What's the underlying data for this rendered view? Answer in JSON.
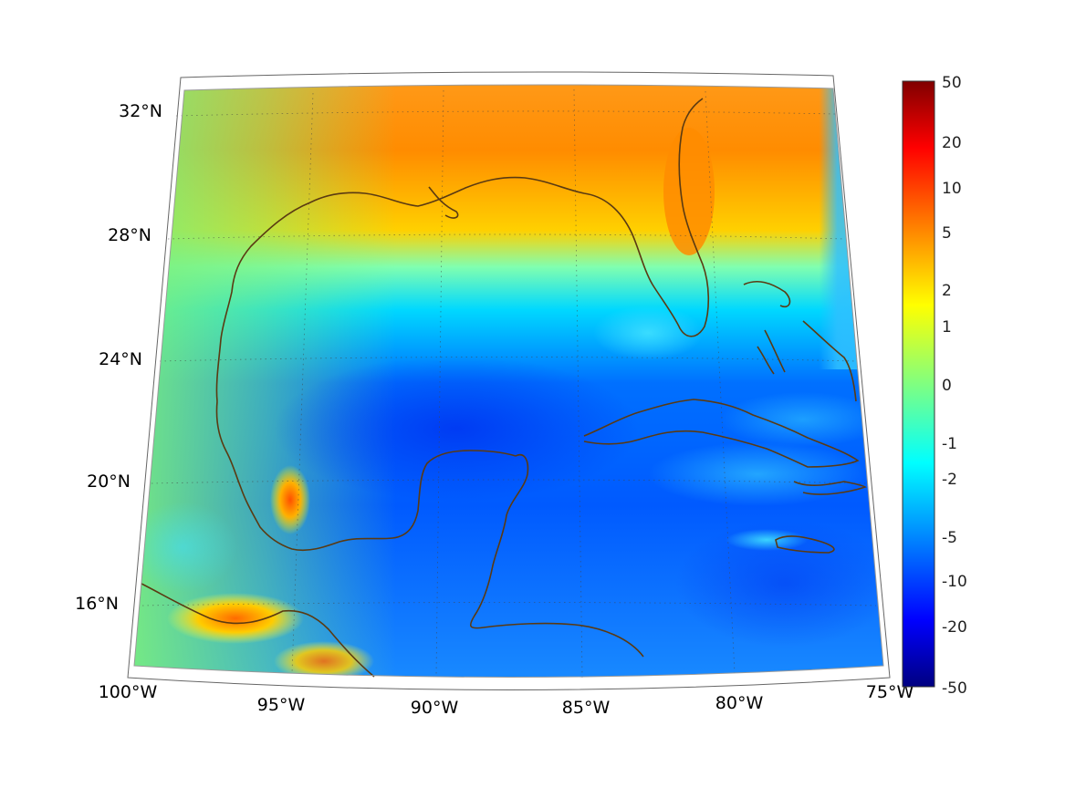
{
  "map": {
    "lat_labels": [
      "32°N",
      "28°N",
      "24°N",
      "20°N",
      "16°N"
    ],
    "lon_labels": [
      "100°W",
      "95°W",
      "90°W",
      "85°W",
      "80°W",
      "75°W"
    ],
    "grid": true,
    "projection": "conic",
    "region": "Gulf of Mexico / Caribbean",
    "extent": {
      "lon": [
        -100,
        -75
      ],
      "lat": [
        14,
        33
      ]
    }
  },
  "colorbar": {
    "colormap": "jet",
    "scale": "symmetric log",
    "placement": "right",
    "tick_labels": [
      "50",
      "20",
      "10",
      "5",
      "2",
      "1",
      "0",
      "-1",
      "-2",
      "-5",
      "-10",
      "-20",
      "-50"
    ],
    "colors": {
      "max": "#800000",
      "high": "#ff0000",
      "mid_high": "#ffff00",
      "zero": "#80ff80",
      "mid_low": "#00ffff",
      "low": "#0000ff",
      "min": "#000080"
    }
  },
  "coastline_color": "#5a3a12"
}
